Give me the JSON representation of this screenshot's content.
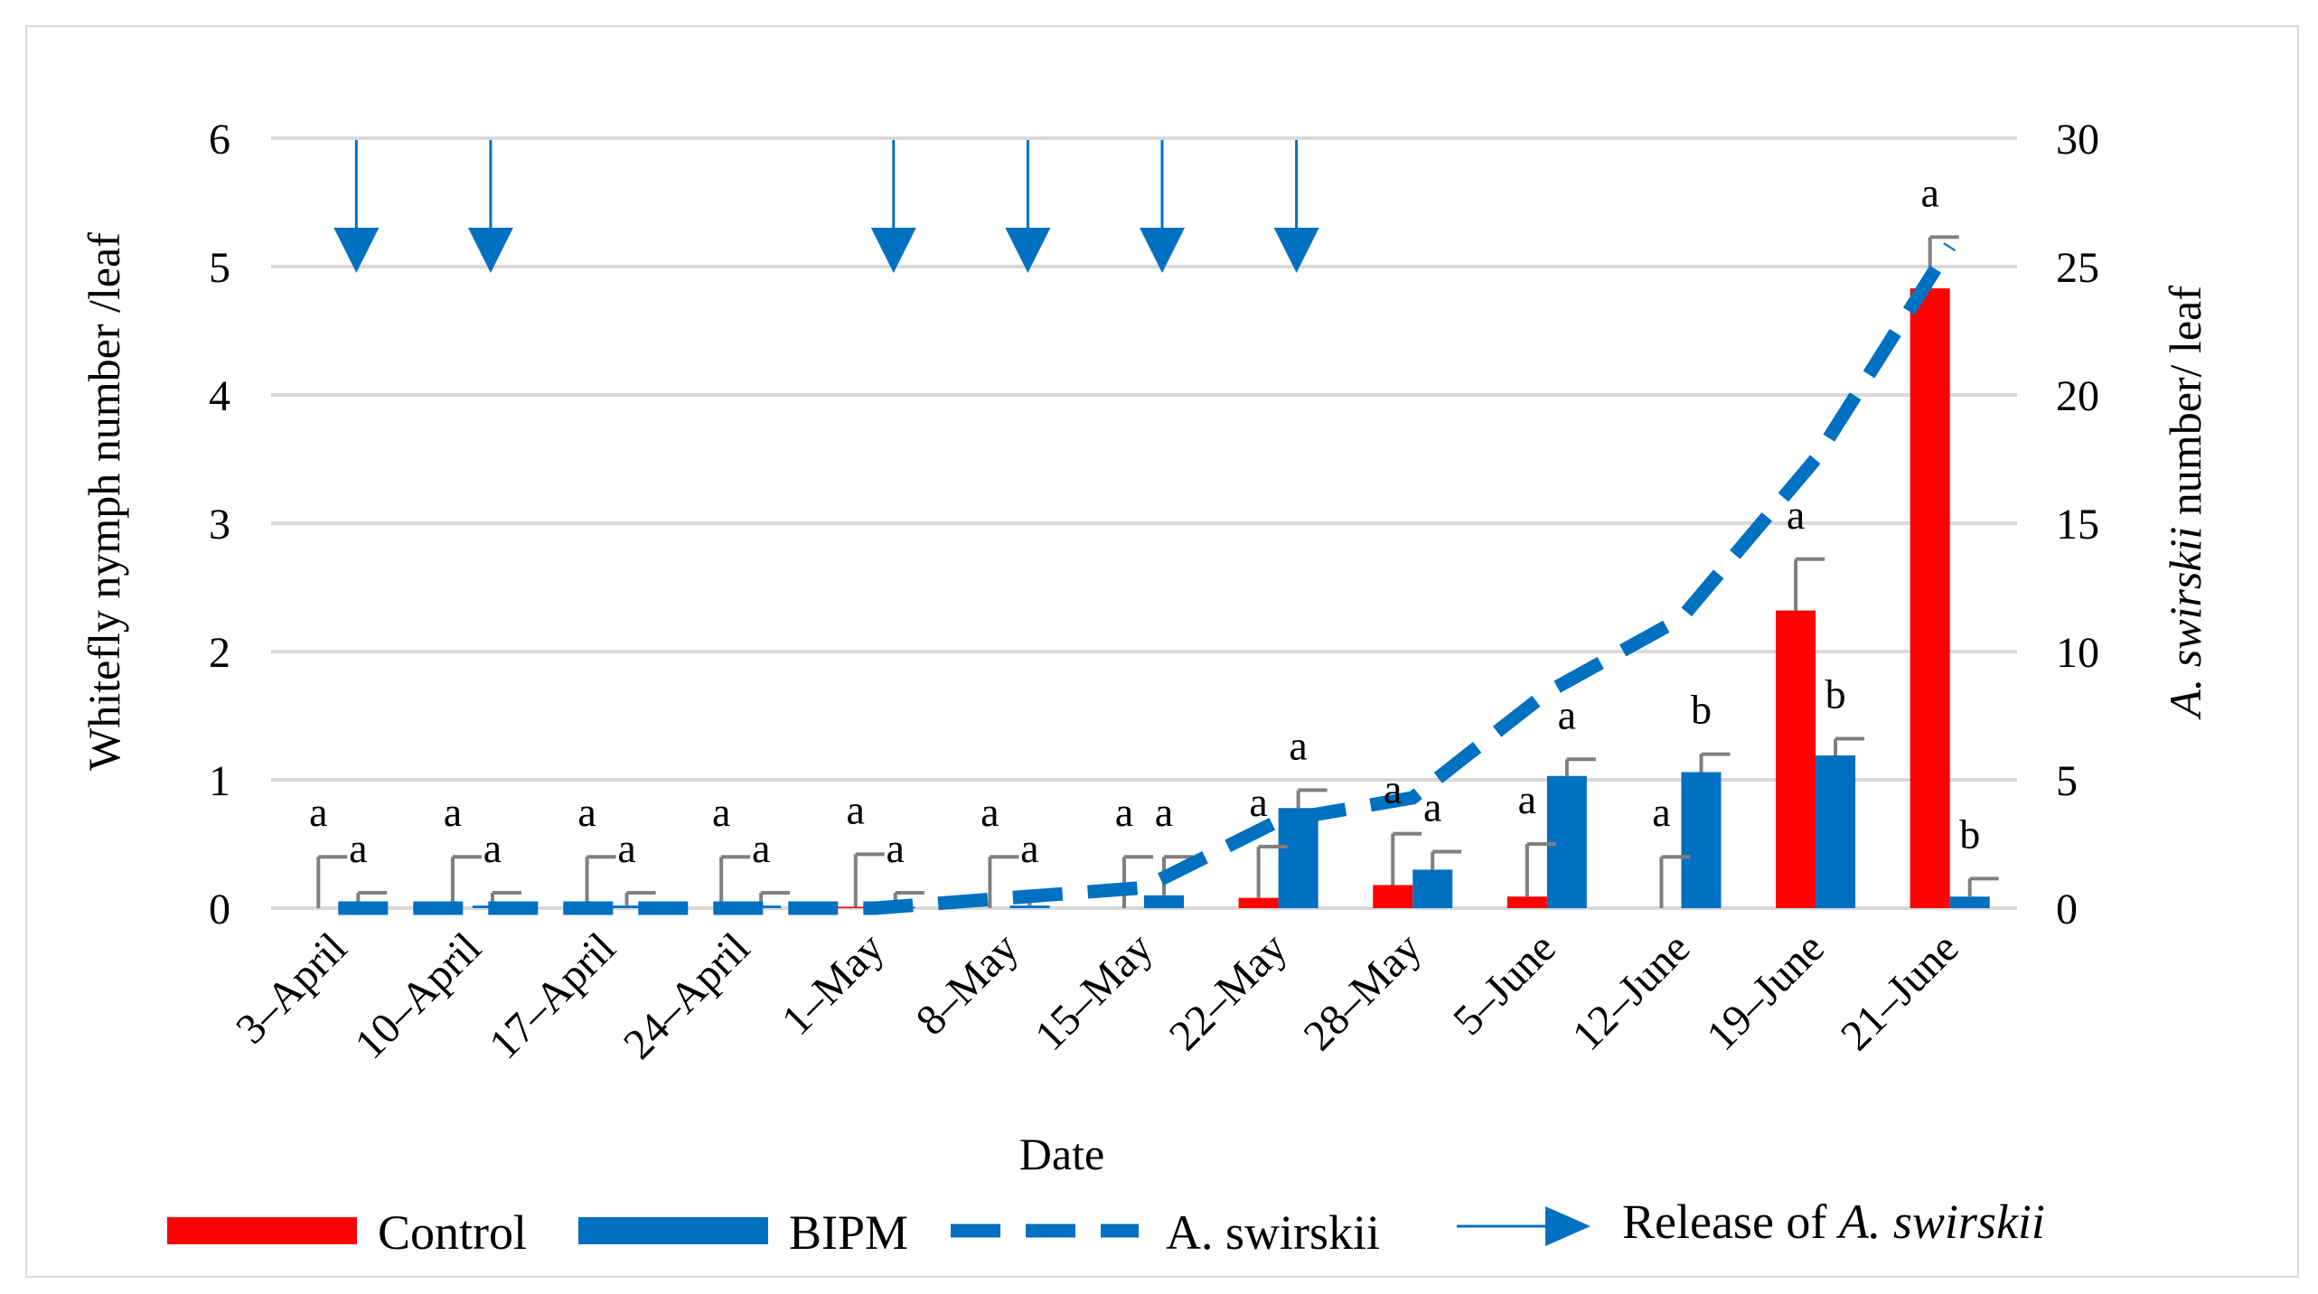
{
  "chart_data": {
    "type": "bar",
    "xlabel": "Date",
    "ylabel": "Whitefly nymph number /leaf",
    "y2label_italic": "A. swirskii",
    "y2label_rest": " number/ leaf",
    "ylim": [
      0,
      6
    ],
    "y2lim": [
      0,
      30
    ],
    "yticks": [
      "0",
      "1",
      "2",
      "3",
      "4",
      "5",
      "6"
    ],
    "y2ticks": [
      "0",
      "5",
      "10",
      "15",
      "20",
      "25",
      "30"
    ],
    "categories": [
      "3–April",
      "10–April",
      "17–April",
      "24–April",
      "1–May",
      "8–May",
      "15–May",
      "22–May",
      "28–May",
      "5–June",
      "12–June",
      "19–June",
      "21–June"
    ],
    "series": [
      {
        "name": "Control",
        "color": "#ff0000",
        "axis": "left",
        "values": [
          0,
          0,
          0,
          0,
          0.01,
          0,
          0,
          0.08,
          0.18,
          0.09,
          0,
          2.32,
          4.83
        ],
        "err_upper": [
          0.4,
          0.4,
          0.4,
          0.4,
          0.42,
          0.4,
          0.4,
          0.48,
          0.58,
          0.5,
          0.4,
          2.72,
          5.23
        ],
        "labels": [
          "a",
          "a",
          "a",
          "a",
          "a",
          "a",
          "a",
          "a",
          "a",
          "a",
          "a",
          "a",
          "a"
        ]
      },
      {
        "name": "BIPM",
        "color": "#0070c0",
        "axis": "left",
        "values": [
          0.02,
          0.02,
          0.02,
          0.02,
          0.01,
          0.02,
          0.1,
          0.78,
          0.3,
          1.03,
          1.06,
          1.19,
          0.09
        ],
        "err_upper": [
          0.12,
          0.12,
          0.12,
          0.12,
          0.12,
          0.12,
          0.4,
          0.92,
          0.44,
          1.16,
          1.2,
          1.32,
          0.23
        ],
        "labels": [
          "a",
          "a",
          "a",
          "a",
          "a",
          "a",
          "a",
          "a",
          "a",
          "a",
          "b",
          "b",
          "b"
        ]
      },
      {
        "name": "A. swirskii",
        "color": "#0070c0",
        "axis": "right",
        "style": "dashed",
        "values": [
          0,
          0,
          0,
          0,
          0,
          0.4,
          0.8,
          3.4,
          4.3,
          8.4,
          11.3,
          17.5,
          25.8
        ]
      }
    ],
    "releases": [
      "3–April",
      "10–April",
      "1–May",
      "8–May",
      "15–May",
      "22–May"
    ],
    "legend": {
      "position": "bottom",
      "control": "Control",
      "bipm": "BIPM",
      "swirskii": "A. swirskii",
      "release_prefix": "Release of ",
      "release_italic": "A. swirskii"
    }
  }
}
